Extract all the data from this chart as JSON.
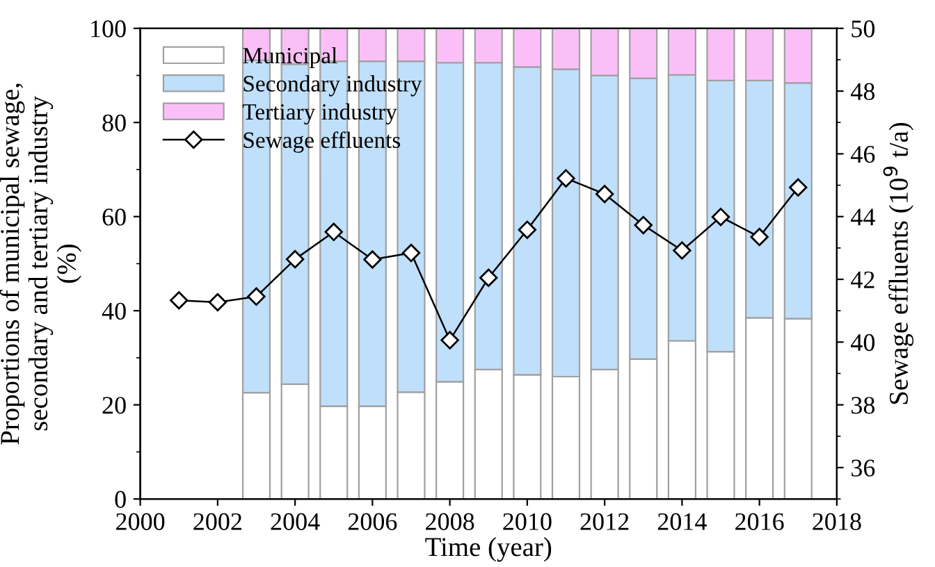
{
  "chart_data": {
    "type": "bar",
    "stacked": true,
    "xlabel": "Time (year)",
    "ylabel": "Proportions of municipal sewage,\nsecondary and tertiary industry\n(%)",
    "y2label": "Sewage effluents (10$^{9}$ t/a)",
    "x": [
      2003,
      2004,
      2005,
      2006,
      2007,
      2008,
      2009,
      2010,
      2011,
      2012,
      2013,
      2014,
      2015,
      2016,
      2017
    ],
    "series": [
      {
        "name": "Municipal",
        "color": "#ffffff",
        "values": [
          22.6,
          24.4,
          19.7,
          19.7,
          22.7,
          24.9,
          27.5,
          26.4,
          26.0,
          27.5,
          29.7,
          33.6,
          31.3,
          38.5,
          38.3
        ]
      },
      {
        "name": "Secondary industry",
        "color": "#bfdffb",
        "values": [
          70.6,
          68.0,
          73.3,
          73.3,
          70.3,
          67.8,
          65.2,
          65.4,
          65.3,
          62.5,
          59.7,
          56.5,
          57.6,
          50.4,
          50.1
        ]
      },
      {
        "name": "Tertiary industry",
        "color": "#fbbff8",
        "values": [
          6.8,
          7.6,
          7.0,
          7.0,
          7.0,
          7.3,
          7.3,
          8.2,
          8.7,
          10.0,
          10.6,
          9.9,
          11.1,
          11.1,
          11.6
        ]
      },
      {
        "name": "Sewage effluents",
        "type": "line",
        "axis": "y2",
        "color": "#000000",
        "marker": "diamond",
        "line_style": "solid",
        "x": [
          2001,
          2002,
          2003,
          2004,
          2005,
          2006,
          2007,
          2008,
          2009,
          2010,
          2011,
          2012,
          2013,
          2014,
          2015,
          2016,
          2017
        ],
        "values": [
          41.33,
          41.27,
          41.45,
          42.64,
          43.51,
          42.63,
          42.84,
          40.06,
          42.05,
          43.58,
          45.22,
          44.72,
          43.73,
          42.92,
          43.99,
          43.35,
          44.93
        ]
      }
    ],
    "xlim": [
      2000,
      2018
    ],
    "xticks": [
      2000,
      2002,
      2004,
      2006,
      2008,
      2010,
      2012,
      2014,
      2016,
      2018
    ],
    "ylim": [
      0,
      100
    ],
    "yticks": [
      0,
      20,
      40,
      60,
      80,
      100
    ],
    "y2lim": [
      35,
      50
    ],
    "y2ticks": [
      36,
      38,
      40,
      42,
      44,
      46,
      48,
      50
    ],
    "legend": "top left",
    "grid": false
  }
}
